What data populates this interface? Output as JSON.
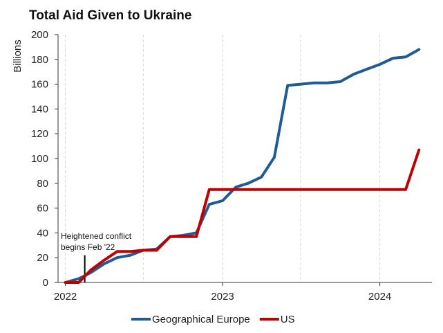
{
  "chart_data": {
    "type": "line",
    "title": "Total Aid Given to Ukraine",
    "xlabel": "",
    "ylabel": "Billions",
    "xlim": [
      "2021-12-15",
      "2024-05-01"
    ],
    "ylim": [
      0,
      200
    ],
    "yticks": [
      0,
      20,
      40,
      60,
      80,
      100,
      120,
      140,
      160,
      180,
      200
    ],
    "xticks": [
      {
        "date": "2022-01-01",
        "label": "2022"
      },
      {
        "date": "2023-01-01",
        "label": "2023"
      },
      {
        "date": "2024-01-01",
        "label": "2024"
      }
    ],
    "grid": "vertical dashed",
    "legend": "bottom",
    "annotation": {
      "date": "2022-02-15",
      "lines": [
        "Heightened conflict",
        "begins Feb '22"
      ]
    },
    "series": [
      {
        "name": "Geographical Europe",
        "color": "#1f5b96",
        "points": [
          {
            "x": "2022-01-01",
            "y": 0
          },
          {
            "x": "2022-02-01",
            "y": 3
          },
          {
            "x": "2022-03-01",
            "y": 8
          },
          {
            "x": "2022-04-01",
            "y": 15
          },
          {
            "x": "2022-05-01",
            "y": 20
          },
          {
            "x": "2022-06-01",
            "y": 22
          },
          {
            "x": "2022-07-01",
            "y": 26
          },
          {
            "x": "2022-08-01",
            "y": 27
          },
          {
            "x": "2022-09-01",
            "y": 37
          },
          {
            "x": "2022-10-01",
            "y": 38
          },
          {
            "x": "2022-11-01",
            "y": 40
          },
          {
            "x": "2022-12-01",
            "y": 63
          },
          {
            "x": "2023-01-01",
            "y": 66
          },
          {
            "x": "2023-02-01",
            "y": 77
          },
          {
            "x": "2023-03-01",
            "y": 80
          },
          {
            "x": "2023-04-01",
            "y": 85
          },
          {
            "x": "2023-05-01",
            "y": 101
          },
          {
            "x": "2023-06-01",
            "y": 159
          },
          {
            "x": "2023-07-01",
            "y": 160
          },
          {
            "x": "2023-08-01",
            "y": 161
          },
          {
            "x": "2023-09-01",
            "y": 161
          },
          {
            "x": "2023-10-01",
            "y": 162
          },
          {
            "x": "2023-11-01",
            "y": 168
          },
          {
            "x": "2023-12-01",
            "y": 172
          },
          {
            "x": "2024-01-01",
            "y": 176
          },
          {
            "x": "2024-02-01",
            "y": 181
          },
          {
            "x": "2024-03-01",
            "y": 182
          },
          {
            "x": "2024-04-01",
            "y": 188
          }
        ]
      },
      {
        "name": "US",
        "color": "#c00000",
        "points": [
          {
            "x": "2022-01-01",
            "y": 0
          },
          {
            "x": "2022-02-01",
            "y": 0
          },
          {
            "x": "2022-03-01",
            "y": 10
          },
          {
            "x": "2022-04-01",
            "y": 18
          },
          {
            "x": "2022-05-01",
            "y": 25
          },
          {
            "x": "2022-06-01",
            "y": 25
          },
          {
            "x": "2022-07-01",
            "y": 26
          },
          {
            "x": "2022-08-01",
            "y": 26
          },
          {
            "x": "2022-09-01",
            "y": 37
          },
          {
            "x": "2022-10-01",
            "y": 37
          },
          {
            "x": "2022-11-01",
            "y": 37
          },
          {
            "x": "2022-12-01",
            "y": 75
          },
          {
            "x": "2023-01-01",
            "y": 75
          },
          {
            "x": "2023-06-01",
            "y": 75
          },
          {
            "x": "2023-12-01",
            "y": 75
          },
          {
            "x": "2024-03-01",
            "y": 75
          },
          {
            "x": "2024-04-01",
            "y": 107
          }
        ]
      }
    ]
  }
}
